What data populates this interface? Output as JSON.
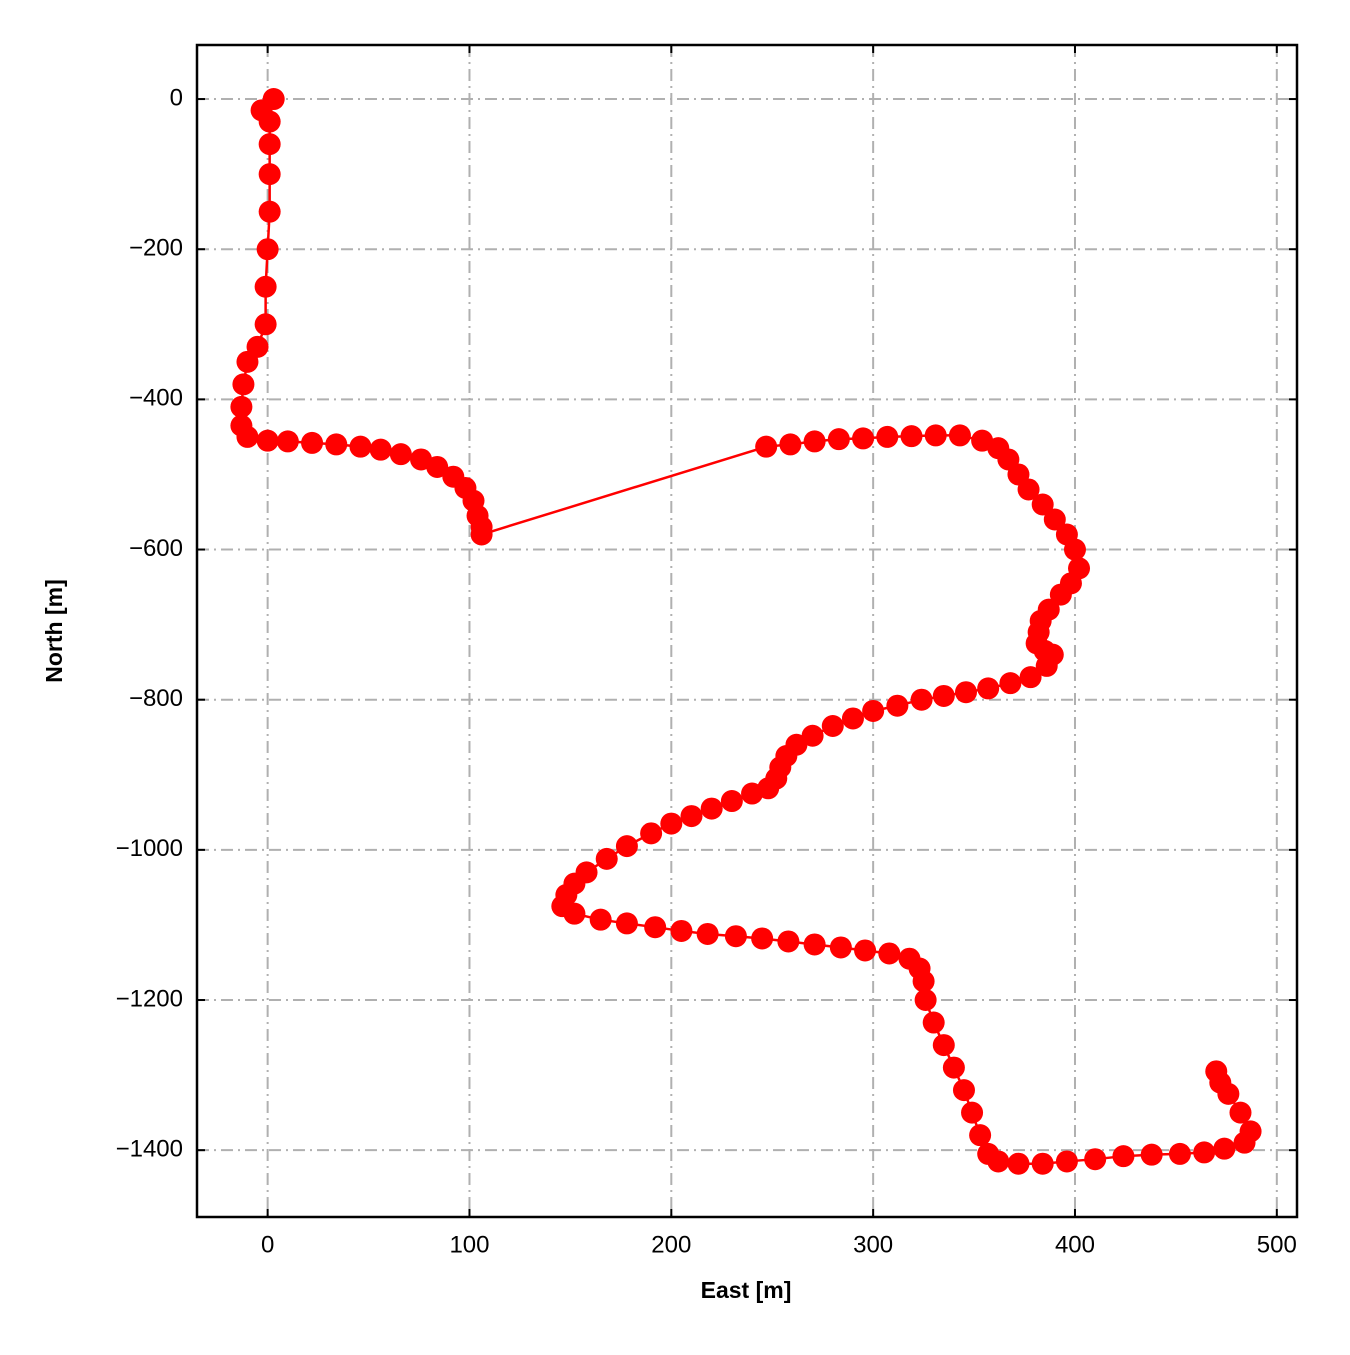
{
  "chart_data": {
    "type": "line",
    "x_label": "East [m]",
    "y_label": "North [m]",
    "xlim": [
      -35,
      510
    ],
    "ylim": [
      -1489,
      72
    ],
    "xticks": [
      0,
      100,
      200,
      300,
      400,
      500
    ],
    "yticks": [
      {
        "value": -1400,
        "label": "−1400"
      },
      {
        "value": -1200,
        "label": "−1200"
      },
      {
        "value": -1000,
        "label": "−1000"
      },
      {
        "value": -800,
        "label": "−800"
      },
      {
        "value": -600,
        "label": "−600"
      },
      {
        "value": -400,
        "label": "−400"
      },
      {
        "value": -200,
        "label": "−200"
      },
      0
    ],
    "grid": true,
    "markers": true,
    "x": [
      3,
      -3,
      1,
      1,
      1,
      1,
      0,
      -1,
      -1,
      -5,
      -10,
      -12,
      -13,
      -13,
      -10,
      0,
      10,
      22,
      34,
      46,
      56,
      66,
      76,
      84,
      92,
      98,
      102,
      104,
      106,
      106,
      247,
      259,
      271,
      283,
      295,
      307,
      319,
      331,
      343,
      354,
      362,
      367,
      372,
      377,
      384,
      390,
      396,
      400,
      402,
      398,
      393,
      387,
      383,
      382,
      381,
      385,
      389,
      386,
      378,
      368,
      357,
      346,
      335,
      324,
      312,
      300,
      290,
      280,
      270,
      262,
      257,
      254,
      252,
      248,
      240,
      230,
      220,
      210,
      200,
      190,
      178,
      168,
      158,
      152,
      148,
      146,
      152,
      165,
      178,
      192,
      205,
      218,
      232,
      245,
      258,
      271,
      284,
      296,
      308,
      318,
      323,
      325,
      326,
      330,
      335,
      340,
      345,
      349,
      353,
      357,
      362,
      372,
      384,
      396,
      410,
      424,
      438,
      452,
      464,
      474,
      484,
      487,
      482,
      476,
      472,
      470
    ],
    "series": [
      {
        "color": "#ff0000",
        "values": [
          0,
          -15,
          -30,
          -60,
          -100,
          -150,
          -200,
          -250,
          -300,
          -330,
          -350,
          -380,
          -410,
          -435,
          -450,
          -455,
          -456,
          -458,
          -460,
          -463,
          -467,
          -473,
          -480,
          -490,
          -503,
          -518,
          -535,
          -555,
          -570,
          -580,
          -463,
          -460,
          -456,
          -453,
          -452,
          -450,
          -449,
          -448,
          -448,
          -455,
          -465,
          -480,
          -500,
          -520,
          -540,
          -560,
          -580,
          -600,
          -625,
          -645,
          -660,
          -680,
          -695,
          -710,
          -725,
          -735,
          -740,
          -755,
          -770,
          -778,
          -785,
          -790,
          -795,
          -800,
          -808,
          -815,
          -825,
          -835,
          -848,
          -860,
          -875,
          -890,
          -905,
          -918,
          -925,
          -935,
          -945,
          -955,
          -965,
          -978,
          -995,
          -1012,
          -1030,
          -1045,
          -1060,
          -1075,
          -1085,
          -1093,
          -1098,
          -1103,
          -1108,
          -1112,
          -1115,
          -1118,
          -1122,
          -1126,
          -1130,
          -1134,
          -1138,
          -1145,
          -1158,
          -1175,
          -1200,
          -1230,
          -1260,
          -1290,
          -1320,
          -1350,
          -1380,
          -1405,
          -1415,
          -1418,
          -1418,
          -1415,
          -1412,
          -1408,
          -1406,
          -1405,
          -1403,
          -1398,
          -1390,
          -1375,
          -1350,
          -1325,
          -1310,
          -1295
        ]
      }
    ]
  }
}
